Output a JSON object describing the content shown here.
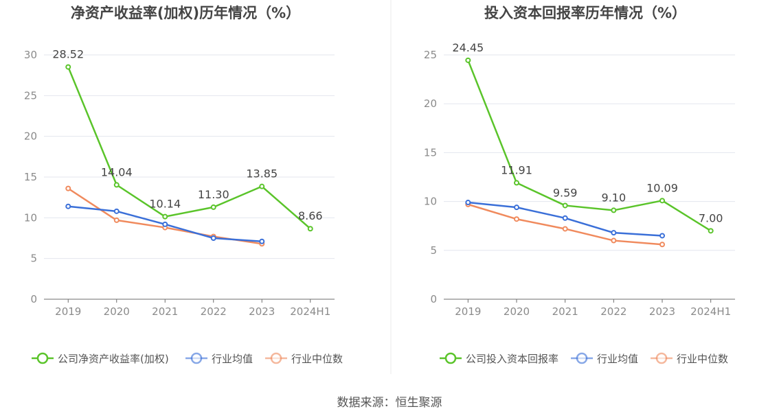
{
  "chart_data": [
    {
      "type": "line",
      "title": "净资产收益率(加权)历年情况（%）",
      "categories": [
        "2019",
        "2020",
        "2021",
        "2022",
        "2023",
        "2024H1"
      ],
      "ylim": [
        0,
        30
      ],
      "yticks": [
        0,
        5,
        10,
        15,
        20,
        25,
        30
      ],
      "grid": true,
      "legend": "bottom",
      "series": [
        {
          "name": "公司净资产收益率(加权)",
          "color": "#5ac42a",
          "values": [
            28.52,
            14.04,
            10.14,
            11.3,
            13.85,
            8.66
          ],
          "labels": [
            "28.52",
            "14.04",
            "10.14",
            "11.30",
            "13.85",
            "8.66"
          ]
        },
        {
          "name": "行业均值",
          "color": "#3a6fd8",
          "values": [
            11.4,
            10.8,
            9.2,
            7.5,
            7.1,
            null
          ]
        },
        {
          "name": "行业中位数",
          "color": "#f08a5d",
          "values": [
            13.6,
            9.7,
            8.8,
            7.7,
            6.8,
            null
          ]
        }
      ]
    },
    {
      "type": "line",
      "title": "投入资本回报率历年情况（%）",
      "categories": [
        "2019",
        "2020",
        "2021",
        "2022",
        "2023",
        "2024H1"
      ],
      "ylim": [
        0,
        25
      ],
      "yticks": [
        0,
        5,
        10,
        15,
        20,
        25
      ],
      "grid": true,
      "legend": "bottom",
      "series": [
        {
          "name": "公司投入资本回报率",
          "color": "#5ac42a",
          "values": [
            24.45,
            11.91,
            9.59,
            9.1,
            10.09,
            7.0
          ],
          "labels": [
            "24.45",
            "11.91",
            "9.59",
            "9.10",
            "10.09",
            "7.00"
          ]
        },
        {
          "name": "行业均值",
          "color": "#3a6fd8",
          "values": [
            9.9,
            9.4,
            8.3,
            6.8,
            6.5,
            null
          ]
        },
        {
          "name": "行业中位数",
          "color": "#f08a5d",
          "values": [
            9.7,
            8.2,
            7.2,
            6.0,
            5.6,
            null
          ]
        }
      ]
    }
  ],
  "source": "数据来源：恒生聚源"
}
